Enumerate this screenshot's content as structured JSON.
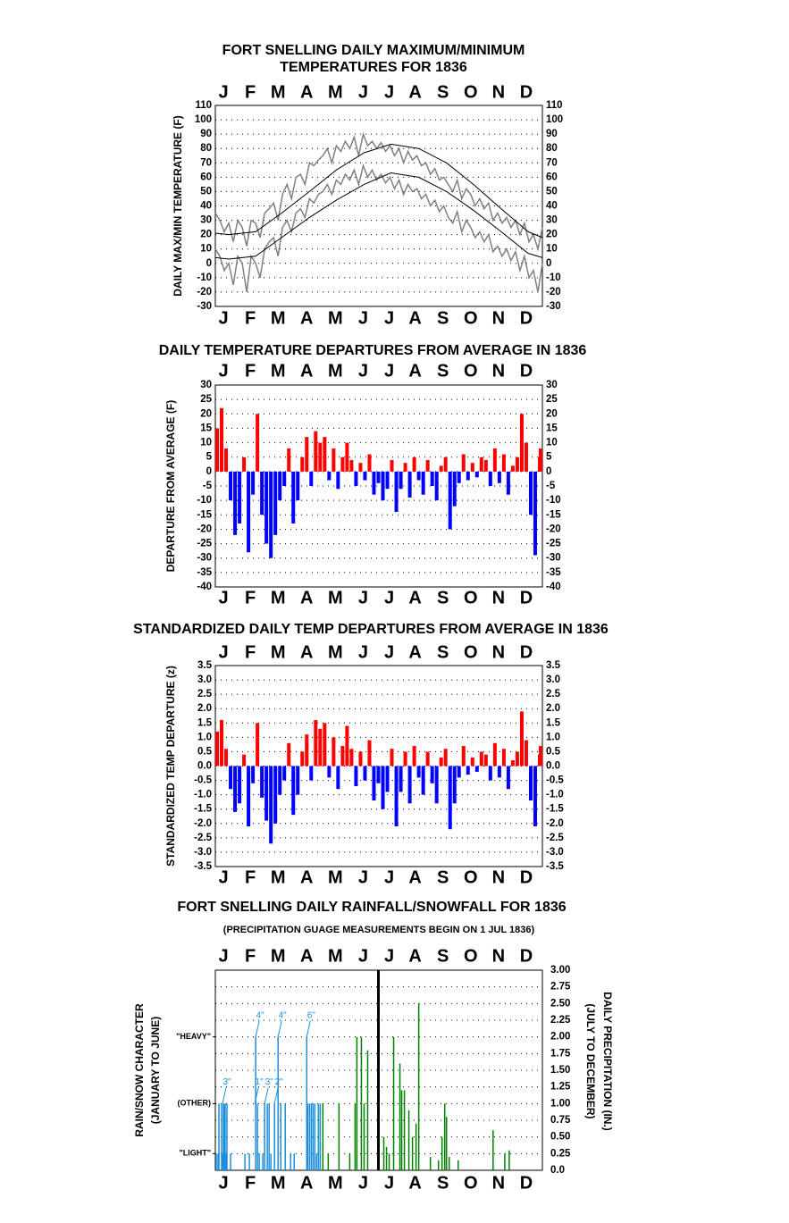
{
  "chart_data": [
    {
      "type": "line",
      "title": [
        "FORT SNELLING DAILY MAXIMUM/MINIMUM",
        "TEMPERATURES FOR 1836"
      ],
      "ylabel": "DAILY MAX/MIN TEMPERATURE (F)",
      "xlim": [
        1,
        366
      ],
      "xticks": [
        {
          "value": 10,
          "label": "J"
        },
        {
          "value": 40,
          "label": "F"
        },
        {
          "value": 71,
          "label": "M"
        },
        {
          "value": 103,
          "label": "A"
        },
        {
          "value": 135,
          "label": "M"
        },
        {
          "value": 166,
          "label": "J"
        },
        {
          "value": 195,
          "label": "J"
        },
        {
          "value": 224,
          "label": "A"
        },
        {
          "value": 255,
          "label": "S"
        },
        {
          "value": 286,
          "label": "O"
        },
        {
          "value": 317,
          "label": "N"
        },
        {
          "value": 348,
          "label": "D"
        }
      ],
      "ylim": [
        -30,
        110
      ],
      "yticks": [
        -30,
        -20,
        -10,
        0,
        10,
        20,
        30,
        40,
        50,
        60,
        70,
        80,
        90,
        100,
        110
      ],
      "grid": true,
      "x": [
        1,
        6,
        11,
        16,
        21,
        26,
        31,
        36,
        41,
        46,
        51,
        56,
        61,
        66,
        71,
        76,
        81,
        86,
        91,
        96,
        101,
        106,
        111,
        116,
        121,
        126,
        131,
        136,
        141,
        146,
        151,
        156,
        161,
        166,
        171,
        176,
        181,
        186,
        191,
        196,
        201,
        206,
        211,
        216,
        221,
        226,
        231,
        236,
        241,
        246,
        251,
        256,
        261,
        266,
        271,
        276,
        281,
        286,
        291,
        296,
        301,
        306,
        311,
        316,
        321,
        326,
        331,
        336,
        341,
        346,
        351,
        356,
        361,
        366
      ],
      "series": [
        {
          "color": "#808080",
          "values": [
            35,
            30,
            22,
            28,
            15,
            30,
            25,
            12,
            30,
            28,
            18,
            35,
            38,
            42,
            30,
            48,
            55,
            45,
            60,
            62,
            55,
            70,
            68,
            72,
            75,
            80,
            70,
            82,
            78,
            85,
            80,
            88,
            75,
            90,
            82,
            85,
            80,
            84,
            78,
            82,
            75,
            80,
            70,
            78,
            72,
            75,
            68,
            70,
            62,
            66,
            58,
            60,
            55,
            50,
            58,
            45,
            52,
            48,
            40,
            45,
            38,
            42,
            30,
            35,
            28,
            32,
            25,
            30,
            20,
            28,
            15,
            20,
            10,
            25
          ]
        },
        {
          "color": "#808080",
          "values": [
            10,
            5,
            -5,
            0,
            -15,
            5,
            0,
            -20,
            5,
            0,
            -10,
            10,
            15,
            18,
            5,
            25,
            30,
            22,
            35,
            38,
            32,
            45,
            42,
            48,
            50,
            55,
            48,
            58,
            55,
            62,
            58,
            65,
            55,
            68,
            60,
            65,
            58,
            62,
            56,
            60,
            52,
            58,
            48,
            55,
            50,
            52,
            45,
            48,
            40,
            44,
            36,
            40,
            32,
            28,
            36,
            22,
            30,
            25,
            18,
            22,
            15,
            20,
            8,
            12,
            5,
            10,
            2,
            8,
            -5,
            5,
            -10,
            -5,
            -20,
            0
          ]
        },
        {
          "color": "#000000",
          "x": [
            1,
            16,
            46,
            75,
            106,
            136,
            167,
            197,
            228,
            259,
            289,
            320,
            350,
            366
          ],
          "values": [
            21,
            20,
            22,
            35,
            50,
            65,
            77,
            83,
            80,
            70,
            55,
            38,
            22,
            18
          ]
        },
        {
          "color": "#000000",
          "x": [
            1,
            16,
            46,
            75,
            106,
            136,
            167,
            197,
            228,
            259,
            289,
            320,
            350,
            366
          ],
          "values": [
            4,
            3,
            5,
            18,
            32,
            44,
            55,
            63,
            60,
            50,
            37,
            22,
            7,
            4
          ]
        }
      ]
    },
    {
      "type": "bar",
      "title": "DAILY TEMPERATURE DEPARTURES FROM AVERAGE IN 1836",
      "ylabel": "DEPARTURE FROM AVERAGE (F)",
      "xlim": [
        1,
        366
      ],
      "xticks": [
        {
          "value": 10,
          "label": "J"
        },
        {
          "value": 40,
          "label": "F"
        },
        {
          "value": 71,
          "label": "M"
        },
        {
          "value": 103,
          "label": "A"
        },
        {
          "value": 135,
          "label": "M"
        },
        {
          "value": 166,
          "label": "J"
        },
        {
          "value": 195,
          "label": "J"
        },
        {
          "value": 224,
          "label": "A"
        },
        {
          "value": 255,
          "label": "S"
        },
        {
          "value": 286,
          "label": "O"
        },
        {
          "value": 317,
          "label": "N"
        },
        {
          "value": 348,
          "label": "D"
        }
      ],
      "ylim": [
        -40,
        30
      ],
      "yticks": [
        -40,
        -35,
        -30,
        -25,
        -20,
        -15,
        -10,
        -5,
        0,
        5,
        10,
        15,
        20,
        25,
        30
      ],
      "grid": true,
      "positive_color": "#ff0000",
      "negative_color": "#0000ff",
      "x": [
        1,
        6,
        11,
        16,
        21,
        26,
        31,
        36,
        41,
        46,
        51,
        56,
        61,
        66,
        71,
        76,
        81,
        86,
        91,
        96,
        101,
        106,
        111,
        116,
        121,
        126,
        131,
        136,
        141,
        146,
        151,
        156,
        161,
        166,
        171,
        176,
        181,
        186,
        191,
        196,
        201,
        206,
        211,
        216,
        221,
        226,
        231,
        236,
        241,
        246,
        251,
        256,
        261,
        266,
        271,
        276,
        281,
        286,
        291,
        296,
        301,
        306,
        311,
        316,
        321,
        326,
        331,
        336,
        341,
        346,
        351,
        356,
        361,
        366
      ],
      "values": [
        15,
        22,
        8,
        -10,
        -22,
        -18,
        5,
        -28,
        -8,
        20,
        -15,
        -25,
        -30,
        -22,
        -10,
        -5,
        8,
        -18,
        -10,
        5,
        12,
        -5,
        14,
        10,
        12,
        -3,
        8,
        -6,
        5,
        10,
        4,
        -5,
        3,
        -3,
        6,
        -8,
        -4,
        -10,
        -6,
        4,
        -14,
        -6,
        3,
        -9,
        5,
        -3,
        -8,
        4,
        -5,
        -10,
        2,
        5,
        -20,
        -12,
        -4,
        6,
        -3,
        3,
        -2,
        5,
        4,
        -5,
        8,
        -4,
        6,
        -8,
        2,
        5,
        20,
        10,
        -15,
        -29,
        5,
        8
      ]
    },
    {
      "type": "bar",
      "title": "STANDARDIZED DAILY TEMP DEPARTURES FROM AVERAGE IN 1836",
      "ylabel": "STANDARDIZED TEMP DEPARTURE (z)",
      "xlim": [
        1,
        366
      ],
      "xticks": [
        {
          "value": 10,
          "label": "J"
        },
        {
          "value": 40,
          "label": "F"
        },
        {
          "value": 71,
          "label": "M"
        },
        {
          "value": 103,
          "label": "A"
        },
        {
          "value": 135,
          "label": "M"
        },
        {
          "value": 166,
          "label": "J"
        },
        {
          "value": 195,
          "label": "J"
        },
        {
          "value": 224,
          "label": "A"
        },
        {
          "value": 255,
          "label": "S"
        },
        {
          "value": 286,
          "label": "O"
        },
        {
          "value": 317,
          "label": "N"
        },
        {
          "value": 348,
          "label": "D"
        }
      ],
      "ylim": [
        -3.5,
        3.5
      ],
      "yticks": [
        {
          "value": -3.5,
          "label": "-3.5"
        },
        {
          "value": -3,
          "label": "-3.0"
        },
        {
          "value": -2.5,
          "label": "-2.5"
        },
        {
          "value": -2,
          "label": "-2.0"
        },
        {
          "value": -1.5,
          "label": "-1.5"
        },
        {
          "value": -1,
          "label": "-1.0"
        },
        {
          "value": -0.5,
          "label": "-0.5"
        },
        {
          "value": 0,
          "label": "0.0"
        },
        {
          "value": 0.5,
          "label": "0.5"
        },
        {
          "value": 1,
          "label": "1.0"
        },
        {
          "value": 1.5,
          "label": "1.5"
        },
        {
          "value": 2,
          "label": "2.0"
        },
        {
          "value": 2.5,
          "label": "2.5"
        },
        {
          "value": 3,
          "label": "3.0"
        },
        {
          "value": 3.5,
          "label": "3.5"
        }
      ],
      "grid": true,
      "positive_color": "#ff0000",
      "negative_color": "#0000ff",
      "x": [
        1,
        6,
        11,
        16,
        21,
        26,
        31,
        36,
        41,
        46,
        51,
        56,
        61,
        66,
        71,
        76,
        81,
        86,
        91,
        96,
        101,
        106,
        111,
        116,
        121,
        126,
        131,
        136,
        141,
        146,
        151,
        156,
        161,
        166,
        171,
        176,
        181,
        186,
        191,
        196,
        201,
        206,
        211,
        216,
        221,
        226,
        231,
        236,
        241,
        246,
        251,
        256,
        261,
        266,
        271,
        276,
        281,
        286,
        291,
        296,
        301,
        306,
        311,
        316,
        321,
        326,
        331,
        336,
        341,
        346,
        351,
        356,
        361,
        366
      ],
      "values": [
        1.2,
        1.6,
        0.6,
        -0.8,
        -1.6,
        -1.3,
        0.4,
        -2.1,
        -0.6,
        1.5,
        -1.1,
        -1.9,
        -2.7,
        -2.0,
        -1.0,
        -0.5,
        0.8,
        -1.7,
        -1.0,
        0.5,
        1.1,
        -0.5,
        1.6,
        1.3,
        1.5,
        -0.4,
        1.0,
        -0.8,
        0.7,
        1.4,
        0.6,
        -0.7,
        0.5,
        -0.5,
        0.9,
        -1.2,
        -0.6,
        -1.5,
        -0.9,
        0.6,
        -2.1,
        -0.9,
        0.5,
        -1.3,
        0.7,
        -0.4,
        -1.0,
        0.5,
        -0.6,
        -1.3,
        0.3,
        0.6,
        -2.2,
        -1.3,
        -0.4,
        0.7,
        -0.3,
        0.3,
        -0.2,
        0.5,
        0.4,
        -0.5,
        0.8,
        -0.4,
        0.6,
        -0.8,
        0.2,
        0.5,
        1.9,
        0.9,
        -1.2,
        -2.1,
        0.4,
        0.7
      ]
    },
    {
      "type": "precip",
      "title": "FORT SNELLING DAILY RAINFALL/SNOWFALL FOR 1836",
      "subtitle": "(PRECIPITATION GUAGE MEASUREMENTS BEGIN ON 1 JUL 1836)",
      "ylabel": [
        "RAIN/SNOW CHARACTER",
        "(JANUARY TO JUNE)"
      ],
      "y2label": [
        "DAILY PRECIPITATION (IN.)",
        "(JULY TO DECEMBER)"
      ],
      "xlim": [
        1,
        366
      ],
      "xticks": [
        {
          "value": 10,
          "label": "J"
        },
        {
          "value": 40,
          "label": "F"
        },
        {
          "value": 71,
          "label": "M"
        },
        {
          "value": 103,
          "label": "A"
        },
        {
          "value": 135,
          "label": "M"
        },
        {
          "value": 166,
          "label": "J"
        },
        {
          "value": 195,
          "label": "J"
        },
        {
          "value": 224,
          "label": "A"
        },
        {
          "value": 255,
          "label": "S"
        },
        {
          "value": 286,
          "label": "O"
        },
        {
          "value": 317,
          "label": "N"
        },
        {
          "value": 348,
          "label": "D"
        }
      ],
      "ylim": [
        0,
        3
      ],
      "yticks": [
        {
          "value": 0.25,
          "label": "\"LIGHT\""
        },
        {
          "value": 1,
          "label": "(OTHER)"
        },
        {
          "value": 2,
          "label": "\"HEAVY\""
        }
      ],
      "y2lim": [
        0,
        3
      ],
      "y2ticks": [
        {
          "value": 0,
          "label": "0.0"
        },
        {
          "value": 0.25,
          "label": "0.25"
        },
        {
          "value": 0.5,
          "label": "0.50"
        },
        {
          "value": 0.75,
          "label": "0.75"
        },
        {
          "value": 1,
          "label": "1.00"
        },
        {
          "value": 1.25,
          "label": "1.25"
        },
        {
          "value": 1.5,
          "label": "1.50"
        },
        {
          "value": 1.75,
          "label": "1.75"
        },
        {
          "value": 2,
          "label": "2.00"
        },
        {
          "value": 2.25,
          "label": "2.25"
        },
        {
          "value": 2.5,
          "label": "2.50"
        },
        {
          "value": 2.75,
          "label": "2.75"
        },
        {
          "value": 3,
          "label": "3.00"
        }
      ],
      "grid": true,
      "marker_x": 183,
      "series": [
        {
          "color": "#1e8fdc",
          "x": [
            2,
            4,
            5,
            8,
            9,
            10,
            11,
            12,
            13,
            14,
            18,
            34,
            39,
            46,
            48,
            50,
            54,
            56,
            59,
            61,
            63,
            67,
            71,
            74,
            79,
            85,
            89,
            103,
            104,
            106,
            108,
            110,
            112,
            114,
            116,
            118
          ],
          "values": [
            0.25,
            0.25,
            1,
            1,
            0.25,
            1,
            1,
            1,
            0.25,
            1,
            0.25,
            0.25,
            0.25,
            2,
            1,
            0.25,
            0.25,
            1,
            1,
            1,
            0.25,
            1,
            2,
            1,
            1,
            0.25,
            0.25,
            2,
            1,
            1,
            1,
            1,
            1,
            0.25,
            1,
            1
          ]
        },
        {
          "color": "#008000",
          "x": [
            121,
            127,
            139,
            151,
            157,
            159,
            164,
            167,
            171,
            189,
            192,
            195,
            200,
            207,
            209,
            212,
            217,
            221,
            225,
            228,
            241,
            250,
            254,
            257,
            259,
            262,
            272,
            311,
            324,
            329
          ],
          "values": [
            1,
            0.25,
            1,
            0.25,
            1,
            2,
            2,
            1,
            1.8,
            0.5,
            0.35,
            0.25,
            2,
            1.6,
            1.2,
            1.2,
            0.9,
            0.5,
            0.7,
            2.5,
            0.2,
            0.15,
            0.5,
            1,
            0.8,
            0.2,
            0.15,
            0.6,
            0.25,
            0.3
          ]
        }
      ],
      "annotations": [
        {
          "text": "3\"",
          "x": 9,
          "y": 1
        },
        {
          "text": "1\"",
          "x": 45,
          "y": 1
        },
        {
          "text": "4\"",
          "x": 46,
          "y": 2
        },
        {
          "text": "3\"",
          "x": 56,
          "y": 1
        },
        {
          "text": "2\"",
          "x": 67,
          "y": 1
        },
        {
          "text": "4\"",
          "x": 71,
          "y": 2
        },
        {
          "text": "6\"",
          "x": 103,
          "y": 2
        }
      ]
    }
  ]
}
